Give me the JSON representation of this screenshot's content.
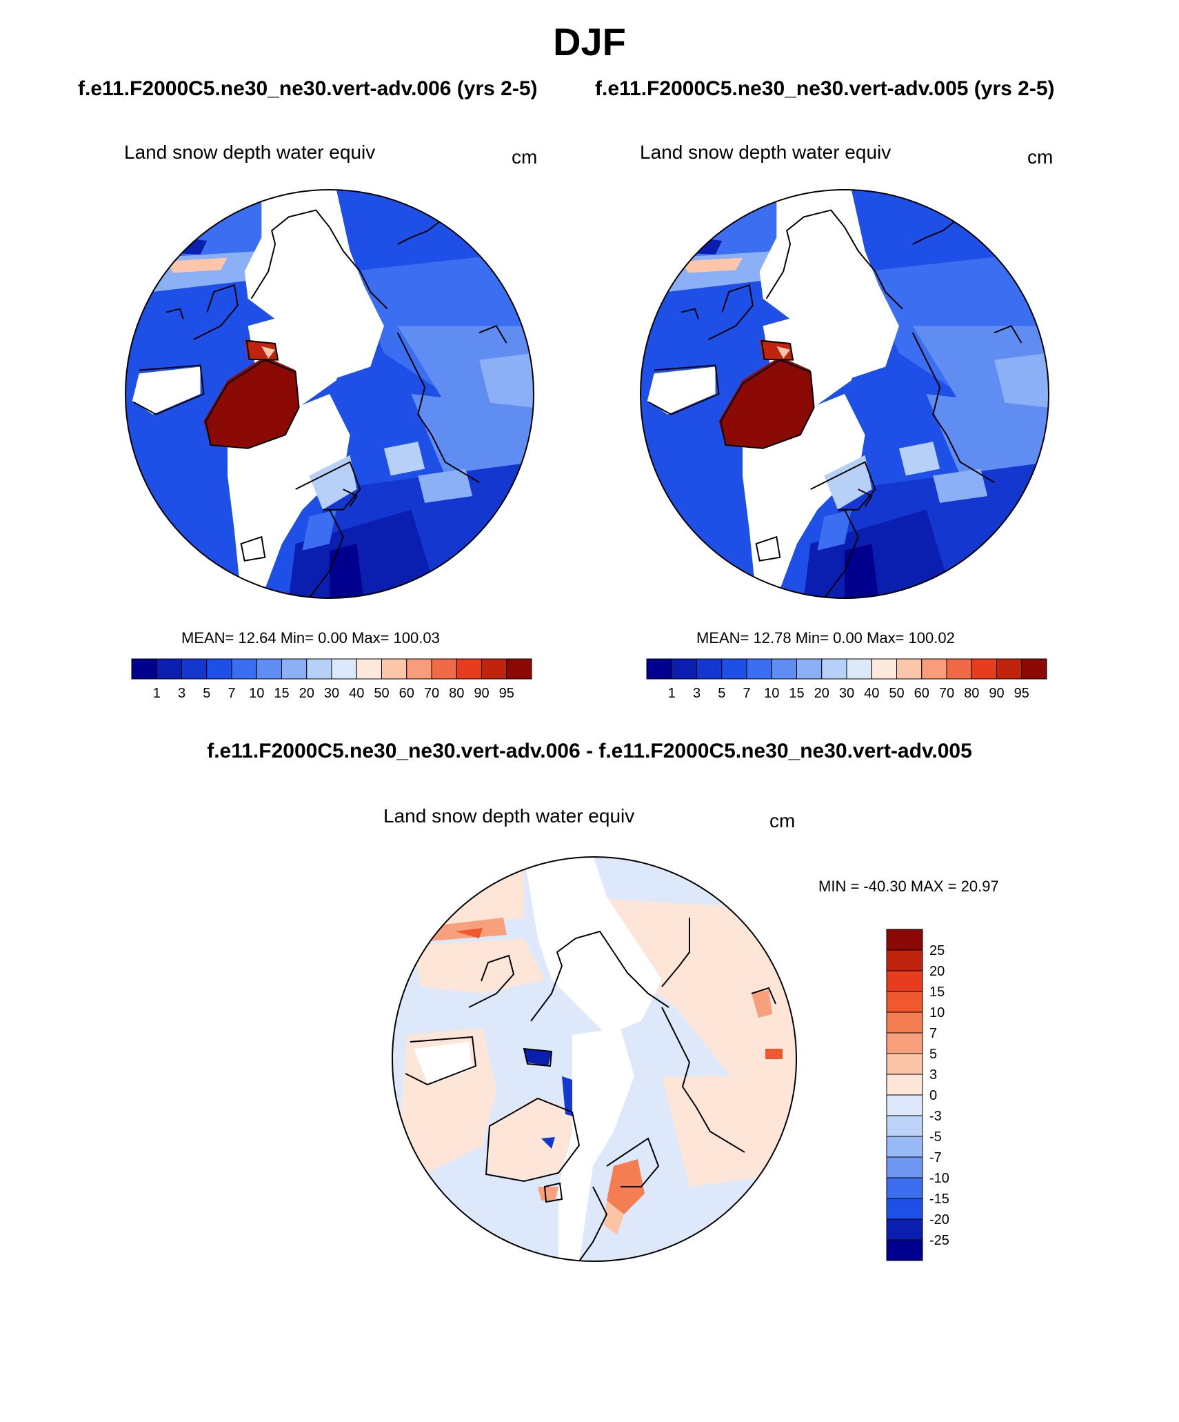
{
  "season": "DJF",
  "panels": [
    {
      "case_title": "f.e11.F2000C5.ne30_ne30.vert-adv.006 (yrs 2-5)",
      "variable_label": "Land snow depth water equiv",
      "units": "cm",
      "stats_text": "MEAN=  12.64  Min=   0.00  Max= 100.03",
      "mean": 12.64,
      "min": 0.0,
      "max": 100.03
    },
    {
      "case_title": "f.e11.F2000C5.ne30_ne30.vert-adv.005 (yrs 2-5)",
      "variable_label": "Land snow depth water equiv",
      "units": "cm",
      "stats_text": "MEAN=  12.78  Min=   0.00  Max= 100.02",
      "mean": 12.78,
      "min": 0.0,
      "max": 100.02
    }
  ],
  "difference": {
    "title": "f.e11.F2000C5.ne30_ne30.vert-adv.006 - f.e11.F2000C5.ne30_ne30.vert-adv.005",
    "variable_label": "Land snow depth water equiv",
    "units": "cm",
    "stats_text": "MIN = -40.30 MAX =  20.97",
    "min": -40.3,
    "max": 20.97
  },
  "colorbar_abs": {
    "levels": [
      "1",
      "3",
      "5",
      "7",
      "10",
      "15",
      "20",
      "30",
      "40",
      "50",
      "60",
      "70",
      "80",
      "90",
      "95"
    ],
    "colors": [
      "#00008f",
      "#0a1fb0",
      "#1437d0",
      "#1e50e8",
      "#3b6ef0",
      "#5f8df2",
      "#8bb0f5",
      "#b7d0f7",
      "#dde9fa",
      "#fde9dc",
      "#fbc6aa",
      "#f89c7a",
      "#f06a47",
      "#e53d1d",
      "#c0240f",
      "#8c0a05"
    ]
  },
  "colorbar_diff": {
    "levels": [
      "25",
      "20",
      "15",
      "10",
      "7",
      "5",
      "3",
      "0",
      "-3",
      "-5",
      "-7",
      "-10",
      "-15",
      "-20",
      "-25"
    ],
    "colors": [
      "#8c0a05",
      "#c0240f",
      "#e53d1d",
      "#f0582d",
      "#f57d52",
      "#f8a07c",
      "#fbc4a6",
      "#fde6d7",
      "#dde9fa",
      "#bdd3f7",
      "#99baf5",
      "#6e97f2",
      "#3c6ef0",
      "#1e50e8",
      "#0a1fb0",
      "#00008f"
    ]
  },
  "map_colors": {
    "snow_free": "#ffffff",
    "coast": "#000000"
  }
}
